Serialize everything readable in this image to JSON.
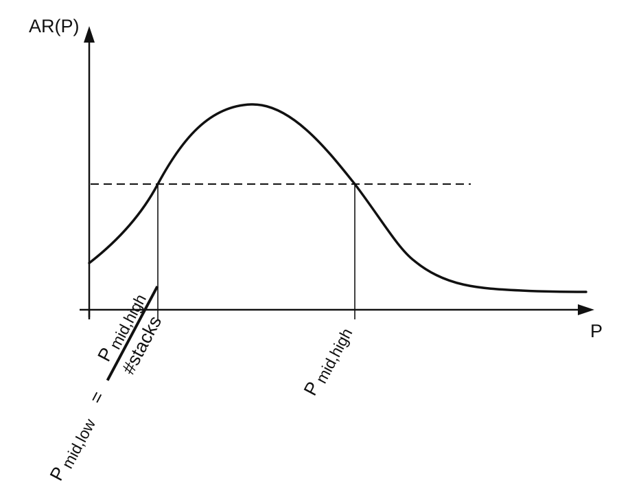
{
  "y_axis": {
    "label": "AR(P)"
  },
  "x_axis": {
    "label": "P"
  },
  "markers": {
    "low": {
      "symbol": "P",
      "subscript": "mid,low",
      "equals": "=",
      "fraction_numerator_symbol": "P",
      "fraction_numerator_subscript": "mid,high",
      "fraction_denominator": "#stacks"
    },
    "high": {
      "symbol": "P",
      "subscript": "mid,high"
    }
  }
}
